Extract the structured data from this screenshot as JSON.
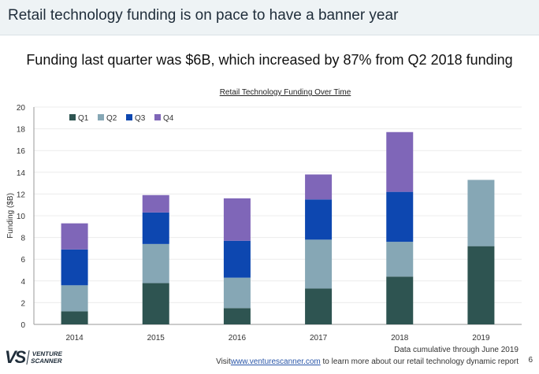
{
  "header": {
    "title": "Retail technology funding is on pace to have a banner year"
  },
  "subtitle": "Funding last quarter was $6B, which increased by 87% from Q2 2018 funding",
  "footer": {
    "note": "Data cumulative through June 2019",
    "visit_prefix": "Visit",
    "link": "www.venturescanner.com",
    "visit_suffix": " to learn more about our retail technology dynamic report",
    "page_number": "6",
    "logo_mark": "VS",
    "logo_line1": "VENTURE",
    "logo_line2": "SCANNER"
  },
  "chart_data": {
    "type": "bar",
    "stacked": true,
    "title": "Retail Technology Funding Over Time",
    "xlabel": "",
    "ylabel": "Funding ($B)",
    "ylim": [
      0,
      20
    ],
    "yticks": [
      0,
      2,
      4,
      6,
      8,
      10,
      12,
      14,
      16,
      18,
      20
    ],
    "grid": true,
    "legend_position": "top-left",
    "categories": [
      "2014",
      "2015",
      "2016",
      "2017",
      "2018",
      "2019"
    ],
    "series": [
      {
        "name": "Q1",
        "color": "#2e5451",
        "values": [
          1.2,
          3.8,
          1.5,
          3.3,
          4.4,
          7.2
        ]
      },
      {
        "name": "Q2",
        "color": "#86a7b5",
        "values": [
          2.4,
          3.6,
          2.8,
          4.5,
          3.2,
          6.1
        ]
      },
      {
        "name": "Q3",
        "color": "#0d47b0",
        "values": [
          3.3,
          2.9,
          3.4,
          3.7,
          4.6,
          null
        ]
      },
      {
        "name": "Q4",
        "color": "#7f66b8",
        "values": [
          2.4,
          1.6,
          3.9,
          2.3,
          5.5,
          null
        ]
      }
    ]
  }
}
